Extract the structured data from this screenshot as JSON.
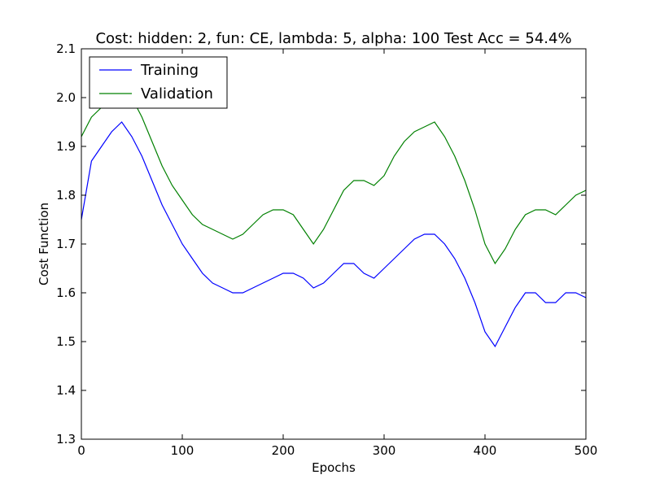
{
  "chart_data": {
    "type": "line",
    "title": "Cost: hidden: 2, fun: CE, lambda: 5, alpha: 100  Test Acc = 54.4%",
    "xlabel": "Epochs",
    "ylabel": "Cost Function",
    "xlim": [
      0,
      500
    ],
    "ylim": [
      1.3,
      2.1
    ],
    "xticks": [
      0,
      100,
      200,
      300,
      400,
      500
    ],
    "yticks": [
      1.3,
      1.4,
      1.5,
      1.6,
      1.7,
      1.8,
      1.9,
      2.0,
      2.1
    ],
    "xtick_labels": [
      "0",
      "100",
      "200",
      "300",
      "400",
      "500"
    ],
    "ytick_labels": [
      "1.3",
      "1.4",
      "1.5",
      "1.6",
      "1.7",
      "1.8",
      "1.9",
      "2.0",
      "2.1"
    ],
    "grid": false,
    "legend_position": "top-left",
    "x": [
      0,
      10,
      20,
      30,
      40,
      50,
      60,
      70,
      80,
      90,
      100,
      110,
      120,
      130,
      140,
      150,
      160,
      170,
      180,
      190,
      200,
      210,
      220,
      230,
      240,
      250,
      260,
      270,
      280,
      290,
      300,
      310,
      320,
      330,
      340,
      350,
      360,
      370,
      380,
      390,
      400,
      410,
      420,
      430,
      440,
      450,
      460,
      470,
      480,
      490,
      500
    ],
    "series": [
      {
        "name": "Training",
        "color": "#0000ff",
        "values": [
          1.75,
          1.87,
          1.9,
          1.93,
          1.95,
          1.92,
          1.88,
          1.83,
          1.78,
          1.74,
          1.7,
          1.67,
          1.64,
          1.62,
          1.61,
          1.6,
          1.6,
          1.61,
          1.62,
          1.63,
          1.64,
          1.64,
          1.63,
          1.61,
          1.62,
          1.64,
          1.66,
          1.66,
          1.64,
          1.63,
          1.65,
          1.67,
          1.69,
          1.71,
          1.72,
          1.72,
          1.7,
          1.67,
          1.63,
          1.58,
          1.52,
          1.49,
          1.53,
          1.57,
          1.6,
          1.6,
          1.58,
          1.58,
          1.6,
          1.6,
          1.59
        ]
      },
      {
        "name": "Validation",
        "color": "#008000",
        "values": [
          1.92,
          1.96,
          1.98,
          2.0,
          2.01,
          2.0,
          1.96,
          1.91,
          1.86,
          1.82,
          1.79,
          1.76,
          1.74,
          1.73,
          1.72,
          1.71,
          1.72,
          1.74,
          1.76,
          1.77,
          1.77,
          1.76,
          1.73,
          1.7,
          1.73,
          1.77,
          1.81,
          1.83,
          1.83,
          1.82,
          1.84,
          1.88,
          1.91,
          1.93,
          1.94,
          1.95,
          1.92,
          1.88,
          1.83,
          1.77,
          1.7,
          1.66,
          1.69,
          1.73,
          1.76,
          1.77,
          1.77,
          1.76,
          1.78,
          1.8,
          1.81
        ]
      }
    ]
  }
}
